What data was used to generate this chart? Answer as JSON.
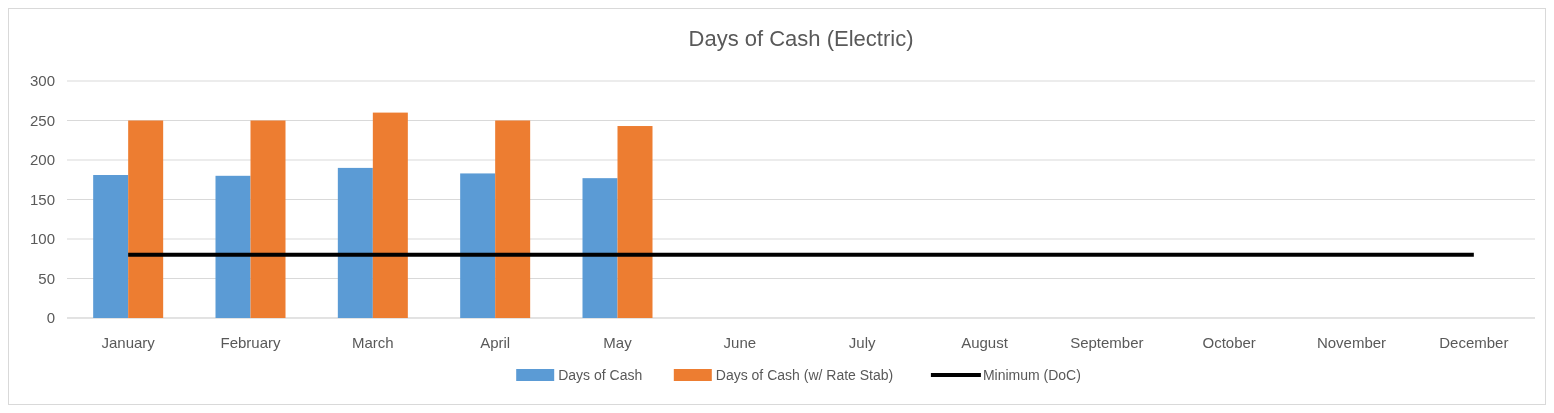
{
  "chart_data": {
    "type": "bar",
    "title": "Days of Cash (Electric)",
    "categories": [
      "January",
      "February",
      "March",
      "April",
      "May",
      "June",
      "July",
      "August",
      "September",
      "October",
      "November",
      "December"
    ],
    "series": [
      {
        "name": "Days of Cash",
        "color": "#5b9bd5",
        "values": [
          181,
          180,
          190,
          183,
          177,
          null,
          null,
          null,
          null,
          null,
          null,
          null
        ]
      },
      {
        "name": "Days of Cash (w/ Rate Stab)",
        "color": "#ed7d31",
        "values": [
          250,
          250,
          260,
          250,
          243,
          null,
          null,
          null,
          null,
          null,
          null,
          null
        ]
      },
      {
        "name": "Minimum (DoC)",
        "color": "#000000",
        "type": "line",
        "values": [
          80,
          80,
          80,
          80,
          80,
          80,
          80,
          80,
          80,
          80,
          80,
          80
        ]
      }
    ],
    "ylim": [
      0,
      300
    ],
    "yticks": [
      0,
      50,
      100,
      150,
      200,
      250,
      300
    ],
    "grid": "y",
    "legend": "bottom"
  }
}
